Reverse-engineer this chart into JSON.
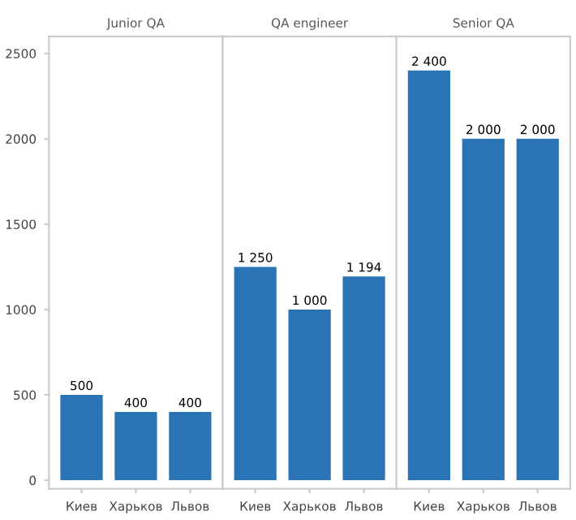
{
  "chart_data": [
    {
      "type": "bar",
      "title": "Junior QA",
      "categories": [
        "Киев",
        "Харьков",
        "Львов"
      ],
      "values": [
        500,
        400,
        400
      ],
      "color": "#2a74b5",
      "value_labels": [
        "500",
        "400",
        "400"
      ],
      "ylim": [
        -50,
        2600
      ],
      "yticks": [
        0,
        500,
        1000,
        1500,
        2000,
        2500
      ],
      "grid": false
    },
    {
      "type": "bar",
      "title": "QA engineer",
      "categories": [
        "Киев",
        "Харьков",
        "Львов"
      ],
      "values": [
        1250,
        1000,
        1194
      ],
      "color": "#2a74b5",
      "value_labels": [
        "1 250",
        "1 000",
        "1 194"
      ],
      "ylim": [
        -50,
        2600
      ],
      "tick_labels": "x",
      "grid": false
    },
    {
      "type": "bar",
      "title": "Senior QA",
      "categories": [
        "Киев",
        "Харьков",
        "Львов"
      ],
      "values": [
        2400,
        2000,
        2000
      ],
      "color": "#2a74b5",
      "value_labels": [
        "2 400",
        "2 000",
        "2 000"
      ],
      "ylim": [
        -50,
        2600
      ],
      "tick_labels": "x",
      "grid": false
    }
  ]
}
